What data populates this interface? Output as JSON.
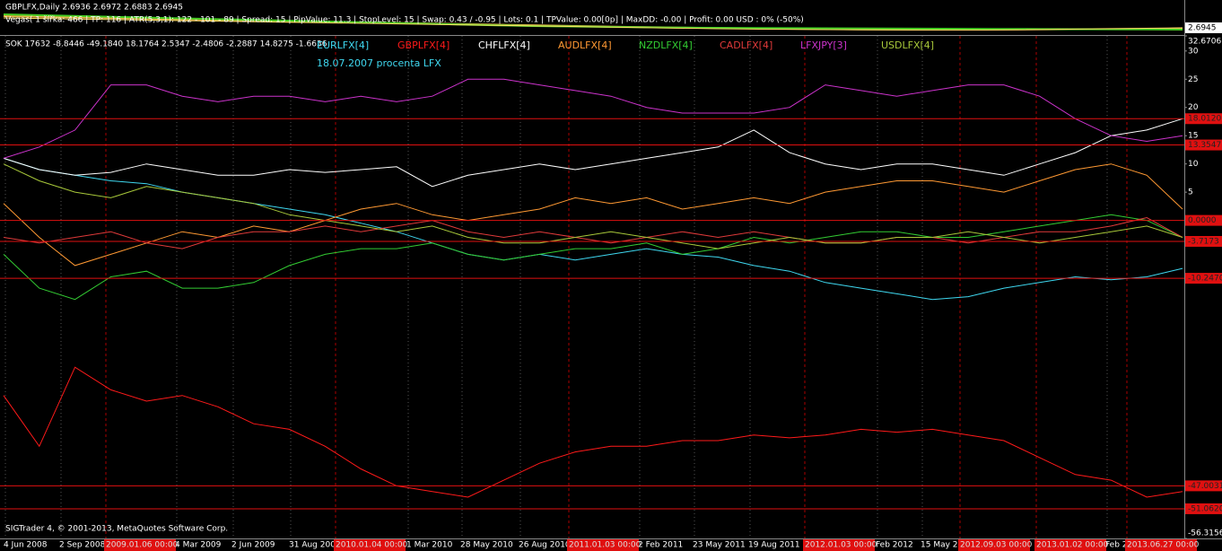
{
  "header": {
    "symbol_line": "GBPLFX,Daily  2.6936 2.6972 2.6883 2.6945",
    "info_line": "Vegas( 1 šířka: 466 | TP: 116 | ATR(5,3,1): 122 - 101 - 89 | Spread: 15 | PipValue: 11.3 | StopLevel: 15 | Swap: 0.43 / -0.95 | Lots: 0.1 | TPValue: 0.00[0p] | MaxDD: -0.00 | Profit: 0.00 USD : 0% (-50%)",
    "price_label": "2.6945"
  },
  "chart_data": {
    "type": "line",
    "title": "SOK 17632 -8.8446 -49.1840 18.1764 2.5347 -2.4806 -2.2887 14.8275 -1.6636",
    "subtitle": "18.07.2007 procenta LFX",
    "footer": "SIGTrader 4, © 2001-2013, MetaQuotes Software Corp.",
    "x_labels": [
      "4 Jun 2008",
      "2 Sep 2008",
      "4 Mar 2009",
      "2 Jun 2009",
      "31 Aug 200",
      "1 Mar 2010",
      "28 May 2010",
      "26 Aug 2010",
      "2 Feb 2011",
      "23 May 2011",
      "19 Aug 2011",
      "Feb 2012",
      "15 May 2",
      "Feb 2"
    ],
    "period_starts": [
      "2009.01.06 00:00",
      "2010.01.04 00:00",
      "2011.01.03 00:00",
      "2012.01.03 00:00",
      "2012.09.03 00:00",
      "2013.01.02 00:00",
      "2013.06.27 00:00"
    ],
    "ylim": [
      -56.3156,
      32.6706
    ],
    "yticks": [
      32.6706,
      30,
      25,
      20,
      15,
      10,
      5,
      -56.3156
    ],
    "levels": [
      {
        "value": 18.012,
        "label": "18.0120"
      },
      13.3547,
      {
        "value": 0,
        "label": "0.0000"
      },
      -3.7173,
      {
        "value": -10.247,
        "label": "-10.2470"
      },
      -47.0031,
      {
        "value": -51.062,
        "label": "-51.0620"
      }
    ],
    "series": [
      {
        "name": "EURLFX[4]",
        "color": "#3fd8f0",
        "values": [
          11,
          9,
          8,
          7,
          6.5,
          5,
          4,
          3,
          2,
          1,
          -0.5,
          -2,
          -4,
          -6,
          -7,
          -6,
          -7,
          -6,
          -5,
          -6,
          -6.5,
          -8,
          -9,
          -11,
          -12,
          -13,
          -14,
          -13.5,
          -12,
          -11,
          -10,
          -10.5,
          -10,
          -8.5
        ]
      },
      {
        "name": "GBPLFX[4]",
        "color": "#ff1a1a",
        "values": [
          -31,
          -40,
          -26,
          -30,
          -32,
          -31,
          -33,
          -36,
          -37,
          -40,
          -44,
          -47,
          -48,
          -49,
          -46,
          -43,
          -41,
          -40,
          -40,
          -39,
          -39,
          -38,
          -38.5,
          -38,
          -37,
          -37.5,
          -37,
          -38,
          -39,
          -42,
          -45,
          -46,
          -49,
          -48
        ]
      },
      {
        "name": "CHFLFX[4]",
        "color": "#ffffff",
        "values": [
          11,
          9,
          8,
          8.5,
          10,
          9,
          8,
          8,
          9,
          8.5,
          9,
          9.5,
          6,
          8,
          9,
          10,
          9,
          10,
          11,
          12,
          13,
          16,
          12,
          10,
          9,
          10,
          10,
          9,
          8,
          10,
          12,
          15,
          16,
          18
        ]
      },
      {
        "name": "AUDLFX[4]",
        "color": "#ff9933",
        "values": [
          3,
          -3,
          -8,
          -6,
          -4,
          -2,
          -3,
          -1,
          -2,
          0,
          2,
          3,
          1,
          0,
          1,
          2,
          4,
          3,
          4,
          2,
          3,
          4,
          3,
          5,
          6,
          7,
          7,
          6,
          5,
          7,
          9,
          10,
          8,
          2
        ]
      },
      {
        "name": "NZDLFX[4]",
        "color": "#33cc33",
        "values": [
          -6,
          -12,
          -14,
          -10,
          -9,
          -12,
          -12,
          -11,
          -8,
          -6,
          -5,
          -5,
          -4,
          -6,
          -7,
          -6,
          -5,
          -5,
          -4,
          -6,
          -5,
          -3,
          -4,
          -3,
          -2,
          -2,
          -3,
          -3,
          -2,
          -1,
          0,
          1,
          0,
          -3
        ]
      },
      {
        "name": "CADLFX[4]",
        "color": "#e03a3a",
        "values": [
          -3,
          -4,
          -3,
          -2,
          -4,
          -5,
          -3,
          -2,
          -2,
          -1,
          -2,
          -1,
          0,
          -2,
          -3,
          -2,
          -3,
          -4,
          -3,
          -2,
          -3,
          -2,
          -3,
          -4,
          -4,
          -3,
          -3,
          -4,
          -3,
          -2,
          -2,
          -1,
          0.5,
          -3
        ]
      },
      {
        "name": "LFXJPY[3]",
        "color": "#cc33cc",
        "values": [
          11,
          13,
          16,
          24,
          24,
          22,
          21,
          22,
          22,
          21,
          22,
          21,
          22,
          25,
          25,
          24,
          23,
          22,
          20,
          19,
          19,
          19,
          20,
          24,
          23,
          22,
          23,
          24,
          24,
          22,
          18,
          15,
          14,
          15
        ]
      },
      {
        "name": "USDLFX[4]",
        "color": "#a8c83a",
        "values": [
          10,
          7,
          5,
          4,
          6,
          5,
          4,
          3,
          1,
          0,
          -1,
          -2,
          -1,
          -3,
          -4,
          -4,
          -3,
          -2,
          -3,
          -4,
          -5,
          -4,
          -3,
          -4,
          -4,
          -3,
          -3,
          -2,
          -3,
          -4,
          -3,
          -2,
          -1,
          -3
        ]
      }
    ]
  }
}
